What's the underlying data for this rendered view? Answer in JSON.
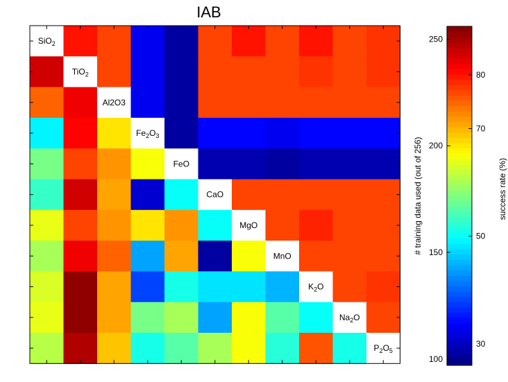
{
  "chart_data": {
    "type": "heatmap",
    "title": "IAB",
    "xlabel": "",
    "ylabel": "",
    "diagonal_labels": [
      {
        "base": "SiO",
        "sub": "2"
      },
      {
        "base": "TiO",
        "sub": "2"
      },
      {
        "base": "Al2O3",
        "sub": ""
      },
      {
        "base": "Fe",
        "sub": "2",
        "rest": "O",
        "sub2": "3"
      },
      {
        "base": "FeO",
        "sub": ""
      },
      {
        "base": "CaO",
        "sub": ""
      },
      {
        "base": "MgO",
        "sub": ""
      },
      {
        "base": "MnO",
        "sub": ""
      },
      {
        "base": "K",
        "sub": "2",
        "rest": "O"
      },
      {
        "base": "Na",
        "sub": "2",
        "rest": "O"
      },
      {
        "base": "P",
        "sub": "2",
        "rest": "O",
        "sub2": "5"
      }
    ],
    "matrix": [
      [
        null,
        80,
        77,
        33,
        28,
        77,
        80,
        77,
        80,
        77,
        78
      ],
      [
        84,
        null,
        77,
        33,
        28,
        77,
        77,
        77,
        78,
        77,
        78
      ],
      [
        75,
        82,
        null,
        33,
        28,
        77,
        77,
        77,
        77,
        77,
        77
      ],
      [
        49,
        81,
        67,
        null,
        28,
        34,
        34,
        33,
        34,
        34,
        34
      ],
      [
        57,
        77,
        72,
        65,
        null,
        29,
        29,
        28,
        29,
        29,
        29
      ],
      [
        53,
        84,
        71,
        31,
        50,
        null,
        77,
        77,
        77,
        77,
        77
      ],
      [
        64,
        77,
        72,
        67,
        72,
        50,
        null,
        77,
        79,
        77,
        77
      ],
      [
        60,
        82,
        75,
        44,
        71,
        28,
        65,
        null,
        77,
        77,
        77
      ],
      [
        63,
        88,
        71,
        38,
        51,
        48,
        48,
        45,
        null,
        77,
        78
      ],
      [
        64,
        88,
        71,
        57,
        60,
        44,
        65,
        55,
        50,
        null,
        77
      ],
      [
        61,
        86,
        69,
        51,
        55,
        60,
        65,
        52,
        76,
        51,
        null
      ]
    ],
    "colorbar": {
      "left_axis_label": "# training data used (out of 256)",
      "left_range": [
        97,
        256
      ],
      "left_ticks": [
        "100",
        "150",
        "200",
        "250"
      ],
      "right_axis_label": "success rate (%)",
      "right_range": [
        26,
        89
      ],
      "right_ticks": [
        "30",
        "50",
        "70",
        "80"
      ],
      "colormap": "jet"
    }
  }
}
